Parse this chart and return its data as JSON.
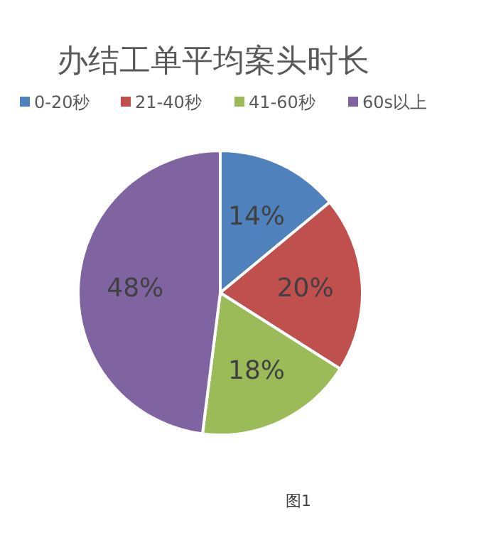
{
  "chart_data": {
    "type": "pie",
    "title": "办结工单平均案头时长",
    "categories": [
      "0-20秒",
      "21-40秒",
      "41-60秒",
      "60s以上"
    ],
    "values": [
      14,
      20,
      18,
      48
    ],
    "value_labels": [
      "14%",
      "20%",
      "18%",
      "48%"
    ],
    "colors": [
      "#4f81bd",
      "#c0504d",
      "#9bbb59",
      "#8064a2"
    ],
    "legend": "top",
    "annotations": [
      "图1"
    ]
  }
}
